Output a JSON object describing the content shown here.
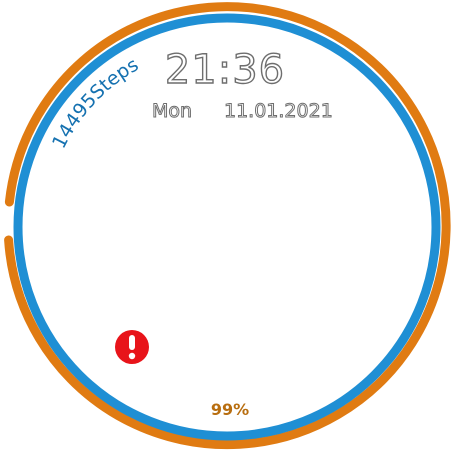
{
  "watch_face": {
    "time": "21:36",
    "day_of_week": "Mon",
    "date": "11.01.2021",
    "steps_text": "14495Steps",
    "battery_text": "99%",
    "battery_level": 0.99,
    "alert_icon": "exclamation-alert-icon"
  },
  "colors": {
    "battery_ring": "#e07b12",
    "steps_ring": "#1f8fd4",
    "steps_text": "#1571b0",
    "battery_text": "#b86e10",
    "alert": "#e8141a"
  }
}
